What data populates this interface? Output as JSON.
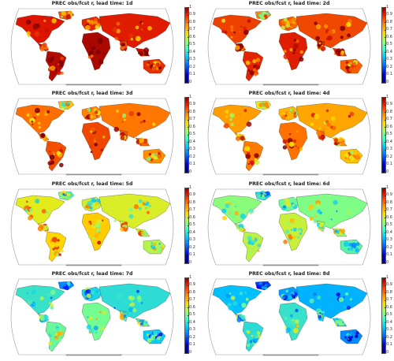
{
  "panels": [
    {
      "title": "PREC obs/fcst r, lead time: 1d",
      "r": 0.92
    },
    {
      "title": "PREC obs/fcst r, lead time: 2d",
      "r": 0.86
    },
    {
      "title": "PREC obs/fcst r, lead time: 3d",
      "r": 0.8
    },
    {
      "title": "PREC obs/fcst r, lead time: 4d",
      "r": 0.74
    },
    {
      "title": "PREC obs/fcst r, lead time: 5d",
      "r": 0.62
    },
    {
      "title": "PREC obs/fcst r, lead time: 6d",
      "r": 0.52
    },
    {
      "title": "PREC obs/fcst r, lead time: 7d",
      "r": 0.42
    },
    {
      "title": "PREC obs/fcst r, lead time: 8d",
      "r": 0.34
    }
  ],
  "colorbar": {
    "ticks": [
      "1",
      "0.9",
      "0.8",
      "0.7",
      "0.6",
      "0.5",
      "0.4",
      "0.3",
      "0.2",
      "0.1",
      "0"
    ],
    "colors": [
      "#8b0000",
      "#ff2a00",
      "#ff8c00",
      "#ffd700",
      "#9aff66",
      "#33ffcc",
      "#00bfff",
      "#0060ff",
      "#0000c8",
      "#00007f"
    ]
  }
}
